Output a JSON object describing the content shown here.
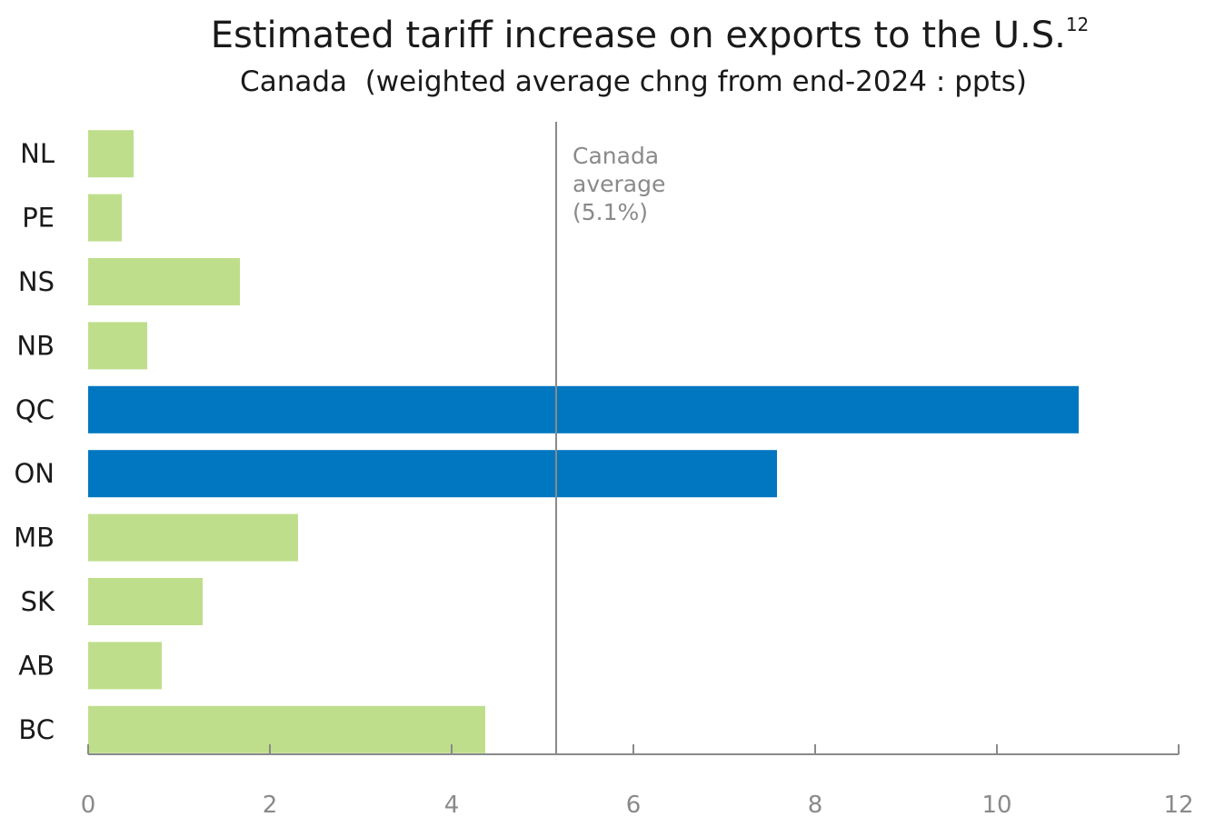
{
  "chart_data": {
    "type": "bar",
    "orientation": "horizontal",
    "title": "Estimated tariff increase on exports to the U.S.",
    "title_superscript": "12",
    "subtitle": "Canada  (weighted average chng from end-2024 : ppts)",
    "categories": [
      "NL",
      "PE",
      "NS",
      "NB",
      "QC",
      "ON",
      "MB",
      "SK",
      "AB",
      "BC"
    ],
    "values": [
      0.5,
      0.37,
      1.67,
      0.65,
      10.9,
      7.58,
      2.31,
      1.26,
      0.81,
      4.37
    ],
    "highlighted": [
      false,
      false,
      false,
      false,
      true,
      true,
      false,
      false,
      false,
      false
    ],
    "xlim": [
      0,
      12
    ],
    "x_ticks": [
      0,
      2,
      4,
      6,
      8,
      10,
      12
    ],
    "grid": false,
    "reference_line": {
      "value": 5.15,
      "label_lines": [
        "Canada",
        "average",
        "(5.1%)"
      ]
    },
    "colors": {
      "default_bar": "#bfde8c",
      "highlight_bar": "#0077c0",
      "reference_line": "#8a8a8a",
      "axis": "#8a8a8a"
    }
  }
}
